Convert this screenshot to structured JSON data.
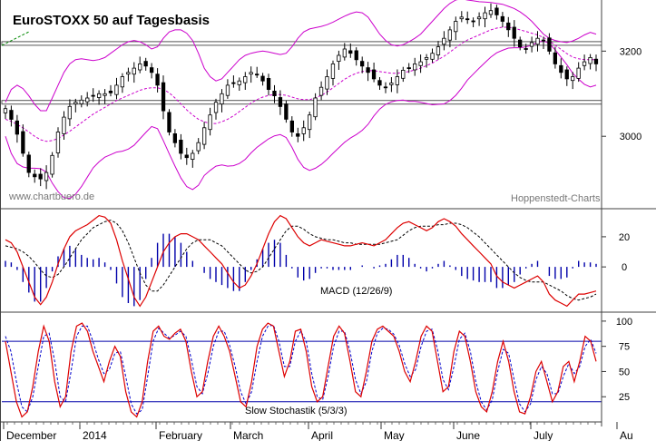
{
  "colors": {
    "frame": "#404040",
    "candle": "#000000",
    "band": "#cc00cc",
    "ma": "#cc00cc",
    "macd": "#dd0000",
    "signal": "#000000",
    "hist": "#0000aa",
    "stochK": "#dd0000",
    "stochD": "#0000cc",
    "level": "#0000aa",
    "trend": "#008800"
  },
  "chart_data": [
    {
      "type": "candlestick",
      "title": "EuroSTOXX 50 auf Tagesbasis",
      "watermark_left": "www.chartbuero.de",
      "watermark_right": "Hoppenstedt-Charts",
      "yticks": [
        3000,
        3200
      ],
      "ylim": [
        2830,
        3320
      ],
      "resistance_levels": [
        3080,
        3218
      ],
      "series": [
        {
          "name": "close",
          "values": [
            3065,
            3040,
            3005,
            2960,
            2915,
            2905,
            2900,
            2915,
            2955,
            3010,
            3045,
            3070,
            3080,
            3085,
            3090,
            3095,
            3100,
            3100,
            3102,
            3120,
            3140,
            3150,
            3160,
            3170,
            3165,
            3150,
            3120,
            3060,
            3010,
            2985,
            2960,
            2950,
            2960,
            2985,
            3020,
            3050,
            3080,
            3100,
            3120,
            3125,
            3130,
            3140,
            3150,
            3145,
            3130,
            3110,
            3095,
            3070,
            3040,
            3010,
            3000,
            3020,
            3050,
            3090,
            3115,
            3140,
            3170,
            3190,
            3205,
            3195,
            3180,
            3165,
            3150,
            3135,
            3120,
            3115,
            3125,
            3140,
            3155,
            3160,
            3170,
            3175,
            3185,
            3195,
            3210,
            3230,
            3250,
            3270,
            3280,
            3275,
            3270,
            3280,
            3290,
            3295,
            3285,
            3270,
            3250,
            3230,
            3210,
            3205,
            3220,
            3230,
            3225,
            3200,
            3170,
            3150,
            3135,
            3140,
            3160,
            3175,
            3185,
            3170
          ]
        },
        {
          "name": "middle_band",
          "values": [
            3040,
            3035,
            3028,
            3020,
            3010,
            3000,
            2992,
            2988,
            2990,
            2995,
            3003,
            3012,
            3022,
            3032,
            3042,
            3052,
            3060,
            3068,
            3076,
            3084,
            3090,
            3096,
            3102,
            3108,
            3112,
            3114,
            3114,
            3110,
            3102,
            3090,
            3076,
            3062,
            3050,
            3040,
            3034,
            3030,
            3030,
            3034,
            3040,
            3048,
            3058,
            3068,
            3078,
            3086,
            3092,
            3096,
            3098,
            3098,
            3096,
            3092,
            3088,
            3086,
            3086,
            3090,
            3096,
            3104,
            3114,
            3124,
            3134,
            3142,
            3148,
            3152,
            3154,
            3154,
            3152,
            3150,
            3148,
            3148,
            3150,
            3152,
            3156,
            3160,
            3166,
            3172,
            3180,
            3188,
            3198,
            3208,
            3218,
            3226,
            3232,
            3238,
            3244,
            3250,
            3254,
            3256,
            3256,
            3254,
            3250,
            3246,
            3242,
            3238,
            3232,
            3224,
            3214,
            3204,
            3194,
            3186,
            3182,
            3180,
            3180,
            3180
          ]
        },
        {
          "name": "upper_band",
          "values": [
            3080,
            3110,
            3120,
            3112,
            3095,
            3075,
            3060,
            3060,
            3090,
            3120,
            3150,
            3170,
            3180,
            3182,
            3180,
            3178,
            3180,
            3185,
            3195,
            3205,
            3215,
            3222,
            3225,
            3222,
            3215,
            3205,
            3210,
            3230,
            3245,
            3250,
            3250,
            3242,
            3225,
            3195,
            3160,
            3140,
            3130,
            3135,
            3150,
            3165,
            3180,
            3190,
            3195,
            3198,
            3200,
            3198,
            3195,
            3192,
            3195,
            3210,
            3230,
            3245,
            3252,
            3255,
            3258,
            3262,
            3268,
            3275,
            3282,
            3288,
            3292,
            3290,
            3280,
            3260,
            3240,
            3225,
            3215,
            3212,
            3215,
            3222,
            3230,
            3240,
            3255,
            3270,
            3285,
            3300,
            3312,
            3320,
            3323,
            3320,
            3318,
            3316,
            3315,
            3314,
            3312,
            3310,
            3305,
            3300,
            3292,
            3282,
            3270,
            3255,
            3240,
            3230,
            3225,
            3222,
            3220,
            3224,
            3230,
            3238,
            3244,
            3240
          ]
        },
        {
          "name": "lower_band",
          "values": [
            3000,
            2960,
            2936,
            2928,
            2925,
            2925,
            2924,
            2916,
            2890,
            2870,
            2856,
            2854,
            2864,
            2882,
            2904,
            2926,
            2940,
            2951,
            2957,
            2963,
            2965,
            2970,
            2979,
            2994,
            3009,
            3023,
            3018,
            2990,
            2959,
            2930,
            2902,
            2882,
            2875,
            2885,
            2908,
            2920,
            2930,
            2933,
            2930,
            2931,
            2936,
            2946,
            2961,
            2974,
            2984,
            2994,
            3001,
            3004,
            2997,
            2974,
            2946,
            2927,
            2920,
            2925,
            2934,
            2946,
            2960,
            2973,
            2986,
            2996,
            3004,
            3014,
            3028,
            3048,
            3064,
            3075,
            3081,
            3084,
            3085,
            3082,
            3082,
            3080,
            3077,
            3074,
            3075,
            3076,
            3084,
            3096,
            3113,
            3132,
            3146,
            3160,
            3173,
            3186,
            3196,
            3202,
            3207,
            3208,
            3208,
            3210,
            3214,
            3221,
            3224,
            3218,
            3203,
            3186,
            3168,
            3148,
            3134,
            3122,
            3116,
            3120
          ]
        }
      ]
    },
    {
      "type": "line+bar",
      "label": "MACD (12/26/9)",
      "yticks": [
        0,
        20
      ],
      "ylim": [
        -30,
        38
      ],
      "series": [
        {
          "name": "macd",
          "values": [
            18,
            16,
            10,
            0,
            -10,
            -20,
            -25,
            -20,
            -10,
            2,
            12,
            20,
            24,
            26,
            28,
            31,
            34,
            33,
            29,
            18,
            4,
            -8,
            -20,
            -26,
            -20,
            -10,
            0,
            10,
            16,
            20,
            22,
            22,
            20,
            18,
            14,
            10,
            6,
            2,
            -4,
            -10,
            -14,
            -12,
            -6,
            2,
            12,
            22,
            30,
            34,
            32,
            26,
            20,
            16,
            14,
            16,
            18,
            17,
            16,
            15,
            14,
            14,
            15,
            16,
            15,
            14,
            16,
            18,
            22,
            26,
            29,
            30,
            28,
            26,
            24,
            26,
            30,
            32,
            30,
            27,
            22,
            18,
            14,
            10,
            6,
            2,
            -6,
            -10,
            -12,
            -14,
            -12,
            -10,
            -8,
            -6,
            -10,
            -18,
            -22,
            -24,
            -26,
            -22,
            -18,
            -18,
            -17,
            -16
          ]
        },
        {
          "name": "signal",
          "values": [
            14,
            13,
            12,
            10,
            7,
            3,
            -2,
            -6,
            -7,
            -5,
            0,
            6,
            12,
            18,
            22,
            26,
            28,
            30,
            31,
            29,
            24,
            16,
            6,
            -4,
            -12,
            -16,
            -16,
            -12,
            -6,
            0,
            6,
            12,
            16,
            18,
            18,
            18,
            16,
            14,
            10,
            6,
            2,
            -2,
            -4,
            -3,
            0,
            6,
            12,
            18,
            24,
            27,
            27,
            25,
            22,
            20,
            19,
            18,
            18,
            17,
            16,
            16,
            15,
            15,
            15,
            15,
            15,
            16,
            17,
            18,
            21,
            24,
            26,
            27,
            27,
            27,
            28,
            28,
            29,
            29,
            28,
            26,
            23,
            20,
            16,
            12,
            8,
            4,
            0,
            -4,
            -7,
            -9,
            -10,
            -10,
            -10,
            -12,
            -14,
            -16,
            -19,
            -21,
            -22,
            -21,
            -20,
            -18
          ]
        },
        {
          "name": "histogram",
          "values": [
            4,
            3,
            -2,
            -10,
            -17,
            -23,
            -23,
            -14,
            -3,
            7,
            12,
            14,
            12,
            8,
            6,
            5,
            6,
            3,
            -2,
            -11,
            -20,
            -24,
            -26,
            -22,
            -8,
            6,
            16,
            22,
            22,
            20,
            16,
            10,
            4,
            0,
            -4,
            -8,
            -10,
            -12,
            -14,
            -16,
            -16,
            -10,
            -2,
            5,
            12,
            16,
            18,
            16,
            8,
            -1,
            -7,
            -9,
            -8,
            -4,
            -1,
            -1,
            -2,
            -2,
            -2,
            -2,
            0,
            1,
            0,
            -1,
            1,
            2,
            5,
            8,
            8,
            6,
            2,
            -1,
            -3,
            -1,
            2,
            4,
            1,
            -2,
            -6,
            -8,
            -9,
            -10,
            -10,
            -10,
            -14,
            -14,
            -12,
            -10,
            -5,
            -1,
            2,
            4,
            0,
            -6,
            -8,
            -8,
            -7,
            -1,
            4,
            3,
            3,
            2
          ]
        }
      ]
    },
    {
      "type": "line",
      "label": "Slow Stochastik (5/3/3)",
      "yticks": [
        25,
        50,
        75,
        100
      ],
      "ylim": [
        0,
        108
      ],
      "levels": [
        20,
        80
      ],
      "series": [
        {
          "name": "k",
          "values": [
            80,
            50,
            20,
            5,
            10,
            35,
            70,
            95,
            80,
            40,
            15,
            25,
            70,
            95,
            98,
            90,
            70,
            55,
            40,
            60,
            75,
            65,
            30,
            10,
            5,
            20,
            60,
            90,
            95,
            85,
            82,
            88,
            92,
            80,
            50,
            25,
            30,
            60,
            85,
            95,
            85,
            70,
            45,
            20,
            15,
            40,
            75,
            92,
            98,
            95,
            70,
            45,
            60,
            90,
            92,
            70,
            35,
            20,
            25,
            55,
            85,
            95,
            88,
            60,
            30,
            25,
            50,
            80,
            92,
            95,
            90,
            85,
            70,
            50,
            40,
            60,
            85,
            95,
            90,
            60,
            30,
            35,
            70,
            90,
            85,
            60,
            30,
            15,
            10,
            30,
            60,
            80,
            60,
            30,
            10,
            8,
            25,
            50,
            60,
            40,
            20,
            30,
            55,
            60,
            40,
            60,
            85,
            80,
            60
          ]
        },
        {
          "name": "d",
          "values": [
            85,
            70,
            40,
            15,
            10,
            25,
            55,
            85,
            88,
            60,
            25,
            20,
            50,
            85,
            95,
            95,
            80,
            62,
            48,
            52,
            68,
            70,
            45,
            18,
            8,
            12,
            45,
            80,
            93,
            88,
            83,
            86,
            90,
            85,
            62,
            35,
            28,
            48,
            75,
            90,
            90,
            76,
            55,
            30,
            18,
            30,
            60,
            85,
            95,
            96,
            80,
            55,
            55,
            80,
            90,
            80,
            48,
            25,
            22,
            45,
            75,
            90,
            90,
            70,
            42,
            28,
            40,
            70,
            88,
            93,
            92,
            87,
            76,
            58,
            45,
            52,
            75,
            90,
            92,
            72,
            42,
            32,
            55,
            82,
            88,
            70,
            40,
            20,
            12,
            22,
            50,
            72,
            68,
            42,
            18,
            10,
            18,
            42,
            55,
            48,
            28,
            28,
            45,
            58,
            48,
            55,
            75,
            82,
            68
          ]
        }
      ]
    }
  ],
  "xaxis": {
    "labels": [
      "December",
      "2014",
      "February",
      "March",
      "April",
      "May",
      "June",
      "July",
      "Au"
    ]
  }
}
